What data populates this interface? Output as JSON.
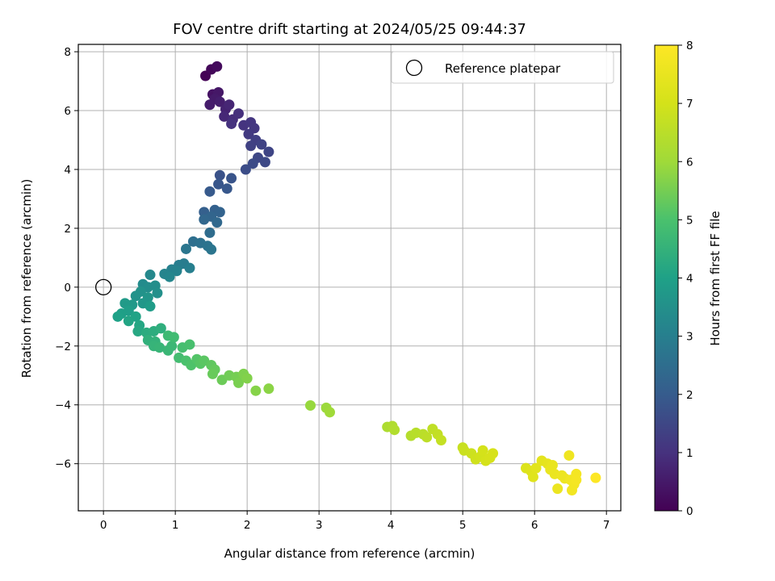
{
  "chart_data": {
    "type": "scatter",
    "title": "FOV centre drift starting at 2024/05/25 09:44:37",
    "xlabel": "Angular distance from reference (arcmin)",
    "ylabel": "Rotation from reference (arcmin)",
    "xlim": [
      -0.35,
      7.2
    ],
    "ylim": [
      -7.6,
      8.25
    ],
    "xticks": [
      0,
      1,
      2,
      3,
      4,
      5,
      6,
      7
    ],
    "yticks": [
      -6,
      -4,
      -2,
      0,
      2,
      4,
      6,
      8
    ],
    "grid": true,
    "legend": {
      "position": "upper right",
      "entries": [
        "Reference platepar"
      ]
    },
    "reference_point": {
      "x": 0,
      "y": 0,
      "label": "Reference platepar"
    },
    "colorbar": {
      "label": "Hours from first FF file",
      "colormap": "viridis",
      "range": [
        0,
        8
      ],
      "ticks": [
        0,
        1,
        2,
        3,
        4,
        5,
        6,
        7,
        8
      ]
    },
    "points": [
      {
        "x": 1.42,
        "y": 7.18,
        "h": 0.05
      },
      {
        "x": 1.5,
        "y": 7.4,
        "h": 0.12
      },
      {
        "x": 1.58,
        "y": 7.5,
        "h": 0.2
      },
      {
        "x": 1.52,
        "y": 6.55,
        "h": 0.35
      },
      {
        "x": 1.6,
        "y": 6.62,
        "h": 0.45
      },
      {
        "x": 1.55,
        "y": 6.4,
        "h": 0.5
      },
      {
        "x": 1.48,
        "y": 6.2,
        "h": 0.55
      },
      {
        "x": 1.62,
        "y": 6.3,
        "h": 0.6
      },
      {
        "x": 1.7,
        "y": 6.05,
        "h": 0.7
      },
      {
        "x": 1.75,
        "y": 6.2,
        "h": 0.75
      },
      {
        "x": 1.68,
        "y": 5.8,
        "h": 0.8
      },
      {
        "x": 1.8,
        "y": 5.7,
        "h": 0.9
      },
      {
        "x": 1.88,
        "y": 5.9,
        "h": 0.95
      },
      {
        "x": 1.78,
        "y": 5.55,
        "h": 1.0
      },
      {
        "x": 1.95,
        "y": 5.5,
        "h": 1.05
      },
      {
        "x": 2.05,
        "y": 5.6,
        "h": 1.1
      },
      {
        "x": 2.1,
        "y": 5.4,
        "h": 1.15
      },
      {
        "x": 2.02,
        "y": 5.2,
        "h": 1.2
      },
      {
        "x": 2.12,
        "y": 5.0,
        "h": 1.3
      },
      {
        "x": 2.05,
        "y": 4.8,
        "h": 1.35
      },
      {
        "x": 2.2,
        "y": 4.85,
        "h": 1.4
      },
      {
        "x": 2.3,
        "y": 4.6,
        "h": 1.45
      },
      {
        "x": 2.15,
        "y": 4.4,
        "h": 1.5
      },
      {
        "x": 2.25,
        "y": 4.25,
        "h": 1.55
      },
      {
        "x": 2.08,
        "y": 4.2,
        "h": 1.6
      },
      {
        "x": 1.98,
        "y": 4.0,
        "h": 1.65
      },
      {
        "x": 1.62,
        "y": 3.8,
        "h": 1.75
      },
      {
        "x": 1.78,
        "y": 3.7,
        "h": 1.8
      },
      {
        "x": 1.6,
        "y": 3.5,
        "h": 1.85
      },
      {
        "x": 1.72,
        "y": 3.35,
        "h": 1.9
      },
      {
        "x": 1.48,
        "y": 3.25,
        "h": 1.95
      },
      {
        "x": 1.4,
        "y": 2.55,
        "h": 2.1
      },
      {
        "x": 1.55,
        "y": 2.62,
        "h": 2.15
      },
      {
        "x": 1.62,
        "y": 2.55,
        "h": 2.2
      },
      {
        "x": 1.5,
        "y": 2.4,
        "h": 2.25
      },
      {
        "x": 1.4,
        "y": 2.3,
        "h": 2.3
      },
      {
        "x": 1.58,
        "y": 2.2,
        "h": 2.35
      },
      {
        "x": 1.48,
        "y": 1.85,
        "h": 2.45
      },
      {
        "x": 1.25,
        "y": 1.55,
        "h": 2.55
      },
      {
        "x": 1.35,
        "y": 1.5,
        "h": 2.6
      },
      {
        "x": 1.45,
        "y": 1.4,
        "h": 2.65
      },
      {
        "x": 1.5,
        "y": 1.28,
        "h": 2.7
      },
      {
        "x": 1.15,
        "y": 1.3,
        "h": 2.75
      },
      {
        "x": 1.12,
        "y": 0.8,
        "h": 2.9
      },
      {
        "x": 1.05,
        "y": 0.75,
        "h": 2.95
      },
      {
        "x": 1.2,
        "y": 0.65,
        "h": 3.0
      },
      {
        "x": 0.95,
        "y": 0.6,
        "h": 3.05
      },
      {
        "x": 1.02,
        "y": 0.55,
        "h": 3.1
      },
      {
        "x": 0.85,
        "y": 0.45,
        "h": 3.15
      },
      {
        "x": 0.92,
        "y": 0.35,
        "h": 3.2
      },
      {
        "x": 0.65,
        "y": 0.42,
        "h": 3.25
      },
      {
        "x": 0.55,
        "y": 0.1,
        "h": 3.35
      },
      {
        "x": 0.62,
        "y": 0.0,
        "h": 3.4
      },
      {
        "x": 0.72,
        "y": 0.05,
        "h": 3.45
      },
      {
        "x": 0.75,
        "y": -0.2,
        "h": 3.5
      },
      {
        "x": 0.52,
        "y": -0.15,
        "h": 3.55
      },
      {
        "x": 0.45,
        "y": -0.3,
        "h": 3.6
      },
      {
        "x": 0.62,
        "y": -0.35,
        "h": 3.65
      },
      {
        "x": 0.55,
        "y": -0.55,
        "h": 3.7
      },
      {
        "x": 0.4,
        "y": -0.6,
        "h": 3.75
      },
      {
        "x": 0.3,
        "y": -0.55,
        "h": 3.8
      },
      {
        "x": 0.65,
        "y": -0.65,
        "h": 3.85
      },
      {
        "x": 0.35,
        "y": -0.8,
        "h": 3.9
      },
      {
        "x": 0.25,
        "y": -0.9,
        "h": 3.95
      },
      {
        "x": 0.2,
        "y": -1.0,
        "h": 4.0
      },
      {
        "x": 0.45,
        "y": -1.0,
        "h": 4.05
      },
      {
        "x": 0.35,
        "y": -1.15,
        "h": 4.1
      },
      {
        "x": 0.5,
        "y": -1.3,
        "h": 4.15
      },
      {
        "x": 0.48,
        "y": -1.5,
        "h": 4.2
      },
      {
        "x": 0.6,
        "y": -1.55,
        "h": 4.3
      },
      {
        "x": 0.7,
        "y": -1.5,
        "h": 4.35
      },
      {
        "x": 0.8,
        "y": -1.4,
        "h": 4.4
      },
      {
        "x": 0.62,
        "y": -1.8,
        "h": 4.45
      },
      {
        "x": 0.72,
        "y": -1.85,
        "h": 4.5
      },
      {
        "x": 0.7,
        "y": -2.0,
        "h": 4.55
      },
      {
        "x": 0.78,
        "y": -2.05,
        "h": 4.6
      },
      {
        "x": 0.9,
        "y": -2.15,
        "h": 4.65
      },
      {
        "x": 0.95,
        "y": -2.0,
        "h": 4.7
      },
      {
        "x": 0.9,
        "y": -1.65,
        "h": 4.75
      },
      {
        "x": 0.98,
        "y": -1.7,
        "h": 4.8
      },
      {
        "x": 1.05,
        "y": -2.4,
        "h": 4.85
      },
      {
        "x": 1.1,
        "y": -2.05,
        "h": 4.9
      },
      {
        "x": 1.2,
        "y": -1.95,
        "h": 4.95
      },
      {
        "x": 1.15,
        "y": -2.5,
        "h": 5.0
      },
      {
        "x": 1.22,
        "y": -2.65,
        "h": 5.05
      },
      {
        "x": 1.3,
        "y": -2.45,
        "h": 5.1
      },
      {
        "x": 1.35,
        "y": -2.6,
        "h": 5.15
      },
      {
        "x": 1.4,
        "y": -2.5,
        "h": 5.2
      },
      {
        "x": 1.5,
        "y": -2.65,
        "h": 5.25
      },
      {
        "x": 1.55,
        "y": -2.8,
        "h": 5.3
      },
      {
        "x": 1.52,
        "y": -2.95,
        "h": 5.35
      },
      {
        "x": 1.65,
        "y": -3.15,
        "h": 5.4
      },
      {
        "x": 1.75,
        "y": -3.0,
        "h": 5.45
      },
      {
        "x": 1.85,
        "y": -3.05,
        "h": 5.5
      },
      {
        "x": 1.88,
        "y": -3.25,
        "h": 5.55
      },
      {
        "x": 1.95,
        "y": -2.95,
        "h": 5.6
      },
      {
        "x": 2.0,
        "y": -3.1,
        "h": 5.65
      },
      {
        "x": 2.12,
        "y": -3.52,
        "h": 5.7
      },
      {
        "x": 2.3,
        "y": -3.45,
        "h": 5.75
      },
      {
        "x": 2.88,
        "y": -4.02,
        "h": 5.9
      },
      {
        "x": 3.1,
        "y": -4.1,
        "h": 5.95
      },
      {
        "x": 3.15,
        "y": -4.25,
        "h": 6.0
      },
      {
        "x": 3.95,
        "y": -4.75,
        "h": 6.25
      },
      {
        "x": 4.02,
        "y": -4.72,
        "h": 6.3
      },
      {
        "x": 4.05,
        "y": -4.85,
        "h": 6.35
      },
      {
        "x": 4.28,
        "y": -5.05,
        "h": 6.4
      },
      {
        "x": 4.35,
        "y": -4.95,
        "h": 6.45
      },
      {
        "x": 4.45,
        "y": -5.0,
        "h": 6.5
      },
      {
        "x": 4.5,
        "y": -5.1,
        "h": 6.55
      },
      {
        "x": 4.58,
        "y": -4.82,
        "h": 6.6
      },
      {
        "x": 4.65,
        "y": -5.0,
        "h": 6.65
      },
      {
        "x": 4.7,
        "y": -5.2,
        "h": 6.7
      },
      {
        "x": 5.0,
        "y": -5.45,
        "h": 6.75
      },
      {
        "x": 5.02,
        "y": -5.55,
        "h": 6.8
      },
      {
        "x": 5.12,
        "y": -5.65,
        "h": 6.85
      },
      {
        "x": 5.18,
        "y": -5.85,
        "h": 6.9
      },
      {
        "x": 5.25,
        "y": -5.75,
        "h": 6.95
      },
      {
        "x": 5.28,
        "y": -5.55,
        "h": 7.0
      },
      {
        "x": 5.32,
        "y": -5.9,
        "h": 7.02
      },
      {
        "x": 5.38,
        "y": -5.8,
        "h": 7.05
      },
      {
        "x": 5.42,
        "y": -5.65,
        "h": 7.08
      },
      {
        "x": 5.88,
        "y": -6.15,
        "h": 7.2
      },
      {
        "x": 5.95,
        "y": -6.25,
        "h": 7.25
      },
      {
        "x": 5.98,
        "y": -6.45,
        "h": 7.3
      },
      {
        "x": 6.02,
        "y": -6.15,
        "h": 7.35
      },
      {
        "x": 6.1,
        "y": -5.9,
        "h": 7.4
      },
      {
        "x": 6.18,
        "y": -6.0,
        "h": 7.45
      },
      {
        "x": 6.22,
        "y": -6.2,
        "h": 7.5
      },
      {
        "x": 6.25,
        "y": -6.05,
        "h": 7.52
      },
      {
        "x": 6.28,
        "y": -6.35,
        "h": 7.55
      },
      {
        "x": 6.32,
        "y": -6.85,
        "h": 7.58
      },
      {
        "x": 6.38,
        "y": -6.4,
        "h": 7.6
      },
      {
        "x": 6.42,
        "y": -6.5,
        "h": 7.62
      },
      {
        "x": 6.48,
        "y": -5.72,
        "h": 7.65
      },
      {
        "x": 6.5,
        "y": -6.55,
        "h": 7.7
      },
      {
        "x": 6.52,
        "y": -6.9,
        "h": 7.72
      },
      {
        "x": 6.55,
        "y": -6.7,
        "h": 7.75
      },
      {
        "x": 6.58,
        "y": -6.35,
        "h": 7.78
      },
      {
        "x": 6.58,
        "y": -6.55,
        "h": 7.8
      },
      {
        "x": 6.85,
        "y": -6.48,
        "h": 8.0
      }
    ]
  }
}
